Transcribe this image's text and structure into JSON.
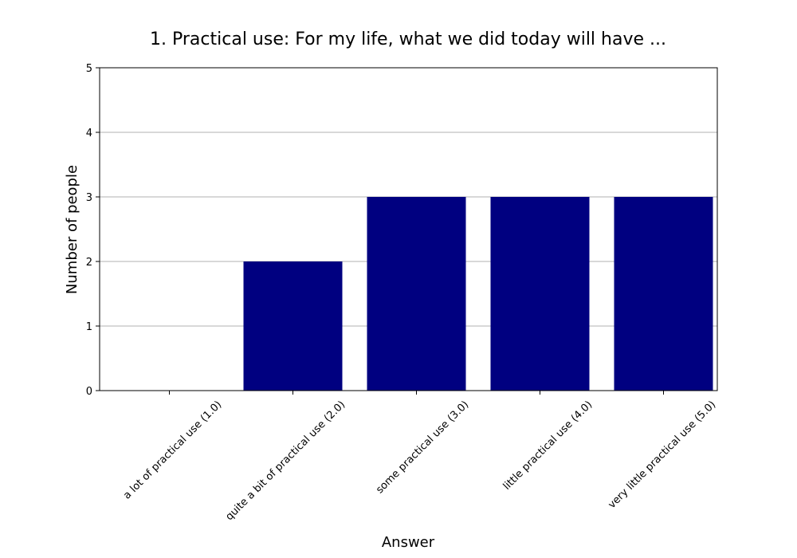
{
  "chart_data": {
    "type": "bar",
    "title": "1. Practical use: For my life, what we did today will have ...",
    "xlabel": "Answer",
    "ylabel": "Number of people",
    "categories": [
      "a lot of practical use (1.0)",
      "quite a bit of practical use (2.0)",
      "some practical use (3.0)",
      "little practical use (4.0)",
      "very little practical use (5.0)"
    ],
    "values": [
      0,
      2,
      3,
      3,
      3
    ],
    "ylim": [
      0,
      5
    ],
    "yticks": [
      "0",
      "1",
      "2",
      "3",
      "4",
      "5"
    ],
    "grid": "horizontal",
    "bar_color": "#000080"
  }
}
